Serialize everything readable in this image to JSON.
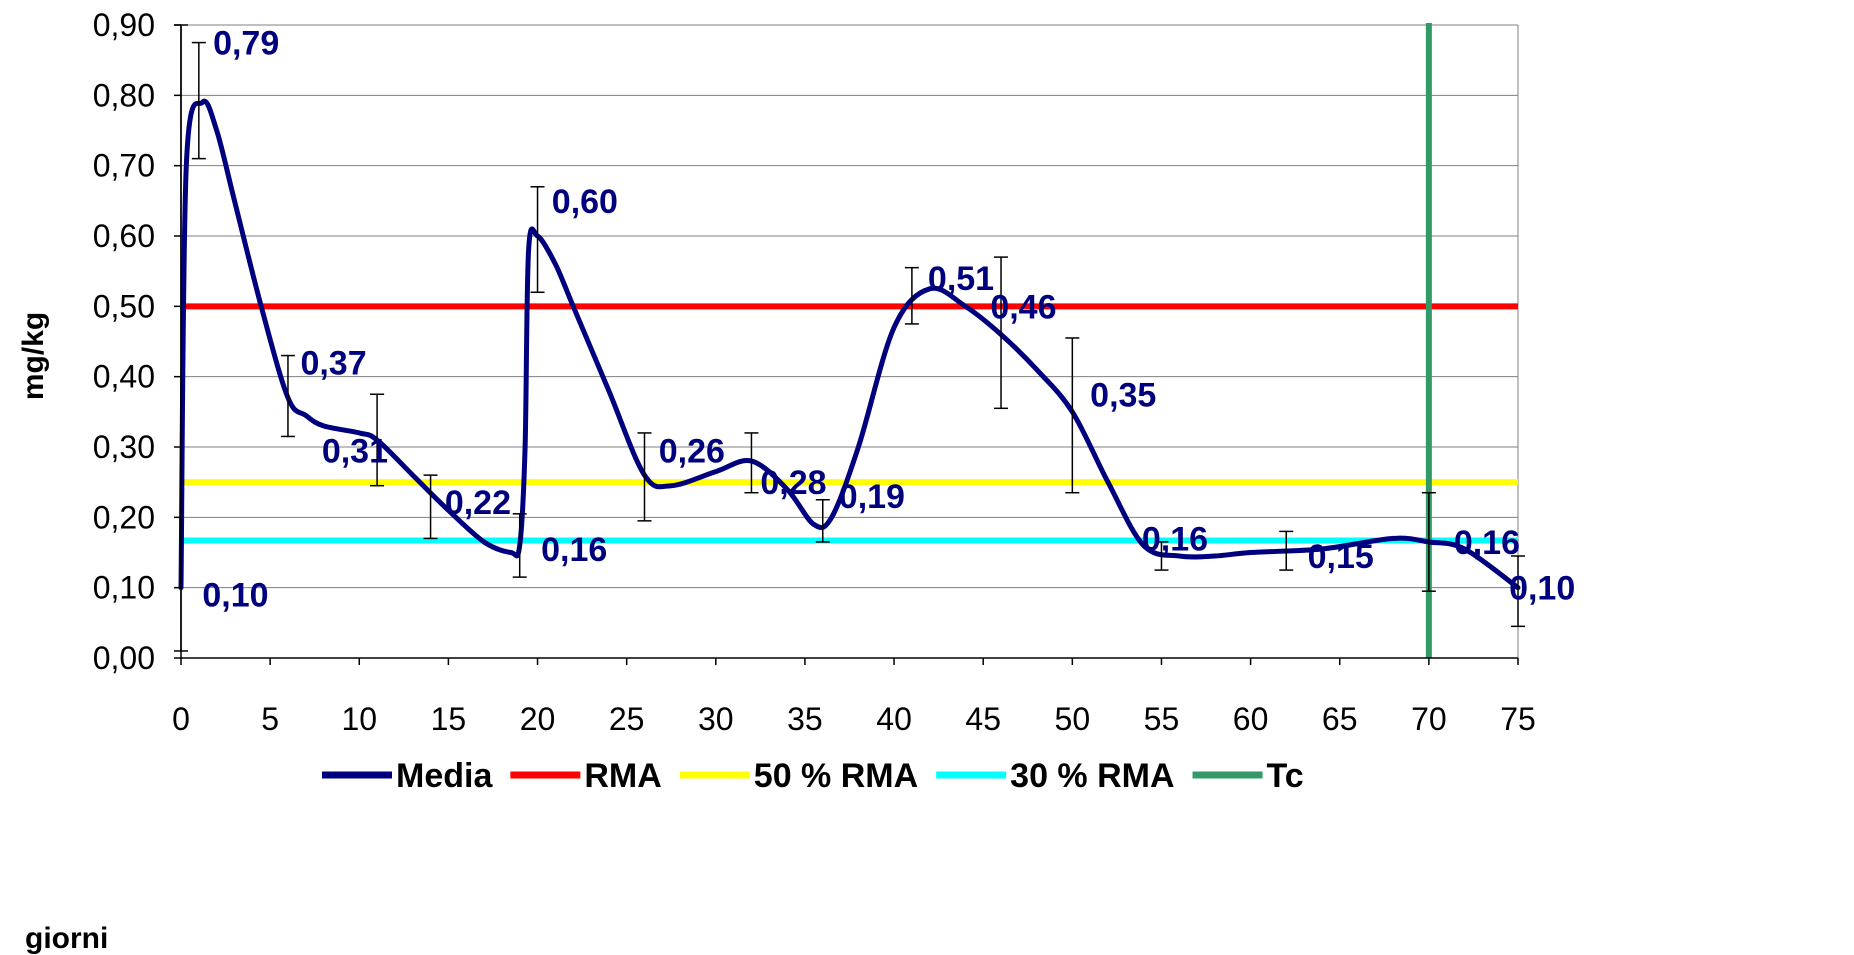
{
  "chart_data": {
    "type": "line",
    "xlabel": "giorni",
    "ylabel": "mg/kg",
    "xlim": [
      0,
      75
    ],
    "ylim": [
      0,
      0.9
    ],
    "x_ticks": [
      0,
      5,
      10,
      15,
      20,
      25,
      30,
      35,
      40,
      45,
      50,
      55,
      60,
      65,
      70,
      75
    ],
    "x_tick_labels": [
      "0",
      "5",
      "10",
      "15",
      "20",
      "25",
      "30",
      "35",
      "40",
      "45",
      "50",
      "55",
      "60",
      "65",
      "70",
      "75"
    ],
    "y_ticks": [
      0,
      0.1,
      0.2,
      0.3,
      0.4,
      0.5,
      0.6,
      0.7,
      0.8,
      0.9
    ],
    "y_tick_labels": [
      "0,00",
      "0,10",
      "0,20",
      "0,30",
      "0,40",
      "0,50",
      "0,60",
      "0,70",
      "0,80",
      "0,90"
    ],
    "grid": "horizontal",
    "legend_position": "bottom",
    "series": [
      {
        "name": "Media",
        "color": "#00007f",
        "curve": "smooth",
        "x": [
          0,
          0.3,
          1.2,
          2,
          3,
          4.5,
          6,
          7,
          8,
          10,
          11,
          13,
          15,
          17,
          18.5,
          19,
          19.3,
          19.5,
          20,
          21,
          22,
          24,
          26,
          27.5,
          30,
          32,
          34,
          35.5,
          36.5,
          38,
          40,
          42,
          44,
          46,
          48,
          50,
          52,
          54,
          56,
          58,
          60,
          64,
          68,
          70,
          72,
          75
        ],
        "y": [
          0.1,
          0.7,
          0.79,
          0.75,
          0.65,
          0.5,
          0.37,
          0.345,
          0.33,
          0.32,
          0.31,
          0.26,
          0.21,
          0.165,
          0.15,
          0.16,
          0.3,
          0.58,
          0.6,
          0.56,
          0.5,
          0.38,
          0.26,
          0.245,
          0.265,
          0.28,
          0.24,
          0.19,
          0.2,
          0.3,
          0.47,
          0.525,
          0.5,
          0.46,
          0.41,
          0.35,
          0.25,
          0.16,
          0.145,
          0.145,
          0.15,
          0.155,
          0.17,
          0.165,
          0.155,
          0.1
        ]
      },
      {
        "name": "RMA",
        "color": "#ff0000",
        "y_const": 0.5,
        "x_range": [
          0,
          75
        ]
      },
      {
        "name": "50 % RMA",
        "color": "#ffff00",
        "y_const": 0.25,
        "x_range": [
          0,
          75
        ]
      },
      {
        "name": "30 % RMA",
        "color": "#00ffff",
        "y_const": 0.167,
        "x_range": [
          0,
          75
        ]
      },
      {
        "name": "Tc",
        "color": "#339966",
        "x_const": 70
      }
    ],
    "error_bars": [
      {
        "x": 0,
        "low": 0.01,
        "high": 0.9
      },
      {
        "x": 1,
        "low": 0.71,
        "high": 0.875
      },
      {
        "x": 6,
        "low": 0.315,
        "high": 0.43
      },
      {
        "x": 11,
        "low": 0.245,
        "high": 0.375
      },
      {
        "x": 14,
        "low": 0.17,
        "high": 0.26
      },
      {
        "x": 19,
        "low": 0.115,
        "high": 0.205
      },
      {
        "x": 20,
        "low": 0.52,
        "high": 0.67
      },
      {
        "x": 26,
        "low": 0.195,
        "high": 0.32
      },
      {
        "x": 32,
        "low": 0.235,
        "high": 0.32
      },
      {
        "x": 36,
        "low": 0.165,
        "high": 0.225
      },
      {
        "x": 41,
        "low": 0.475,
        "high": 0.555
      },
      {
        "x": 46,
        "low": 0.355,
        "high": 0.57
      },
      {
        "x": 50,
        "low": 0.235,
        "high": 0.455
      },
      {
        "x": 55,
        "low": 0.125,
        "high": 0.165
      },
      {
        "x": 62,
        "low": 0.125,
        "high": 0.18
      },
      {
        "x": 70,
        "low": 0.095,
        "high": 0.235
      },
      {
        "x": 75,
        "low": 0.045,
        "high": 0.145
      }
    ],
    "data_labels": [
      {
        "text": "0,10",
        "x": 1.2,
        "y": 0.09
      },
      {
        "text": "0,79",
        "x": 1.8,
        "y": 0.875
      },
      {
        "text": "0,37",
        "x": 6.7,
        "y": 0.42
      },
      {
        "text": "0,31",
        "x": 7.9,
        "y": 0.295
      },
      {
        "text": "0,22",
        "x": 14.8,
        "y": 0.222
      },
      {
        "text": "0,16",
        "x": 20.2,
        "y": 0.155
      },
      {
        "text": "0,60",
        "x": 20.8,
        "y": 0.65
      },
      {
        "text": "0,26",
        "x": 26.8,
        "y": 0.295
      },
      {
        "text": "0,28",
        "x": 32.5,
        "y": 0.25
      },
      {
        "text": "0,19",
        "x": 36.9,
        "y": 0.23
      },
      {
        "text": "0,51",
        "x": 41.9,
        "y": 0.54
      },
      {
        "text": "0,46",
        "x": 45.4,
        "y": 0.5
      },
      {
        "text": "0,35",
        "x": 51,
        "y": 0.375
      },
      {
        "text": "0,16",
        "x": 53.9,
        "y": 0.17
      },
      {
        "text": "0,15",
        "x": 63.2,
        "y": 0.145
      },
      {
        "text": "0,16",
        "x": 71.4,
        "y": 0.165
      },
      {
        "text": "0,10",
        "x": 74.5,
        "y": 0.1
      }
    ],
    "label_color": "#00007f",
    "axis_color": "#000000",
    "grid_color": "#808080"
  }
}
